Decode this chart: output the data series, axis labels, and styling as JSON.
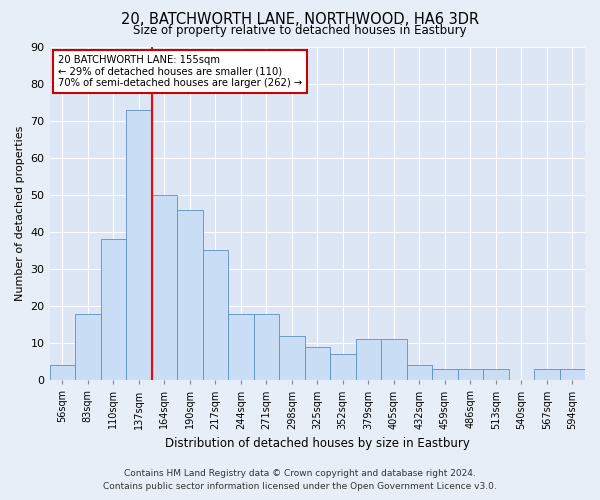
{
  "title": "20, BATCHWORTH LANE, NORTHWOOD, HA6 3DR",
  "subtitle": "Size of property relative to detached houses in Eastbury",
  "xlabel": "Distribution of detached houses by size in Eastbury",
  "ylabel": "Number of detached properties",
  "footer_line1": "Contains HM Land Registry data © Crown copyright and database right 2024.",
  "footer_line2": "Contains public sector information licensed under the Open Government Licence v3.0.",
  "bar_labels": [
    "56sqm",
    "83sqm",
    "110sqm",
    "137sqm",
    "164sqm",
    "190sqm",
    "217sqm",
    "244sqm",
    "271sqm",
    "298sqm",
    "325sqm",
    "352sqm",
    "379sqm",
    "405sqm",
    "432sqm",
    "459sqm",
    "486sqm",
    "513sqm",
    "540sqm",
    "567sqm",
    "594sqm"
  ],
  "bar_values": [
    4,
    18,
    38,
    73,
    50,
    46,
    35,
    18,
    18,
    12,
    9,
    7,
    11,
    11,
    4,
    3,
    3,
    3,
    0,
    3,
    3
  ],
  "bar_color": "#c9ddf5",
  "bar_edge_color": "#5b8fcc",
  "fig_bg_color": "#e8eef8",
  "axes_bg_color": "#dde6f5",
  "grid_color": "#ffffff",
  "annotation_text_line1": "20 BATCHWORTH LANE: 155sqm",
  "annotation_text_line2": "← 29% of detached houses are smaller (110)",
  "annotation_text_line3": "70% of semi-detached houses are larger (262) →",
  "annotation_box_edge_color": "#cc0000",
  "red_line_x": 3.5,
  "ylim": [
    0,
    90
  ],
  "yticks": [
    0,
    10,
    20,
    30,
    40,
    50,
    60,
    70,
    80,
    90
  ]
}
